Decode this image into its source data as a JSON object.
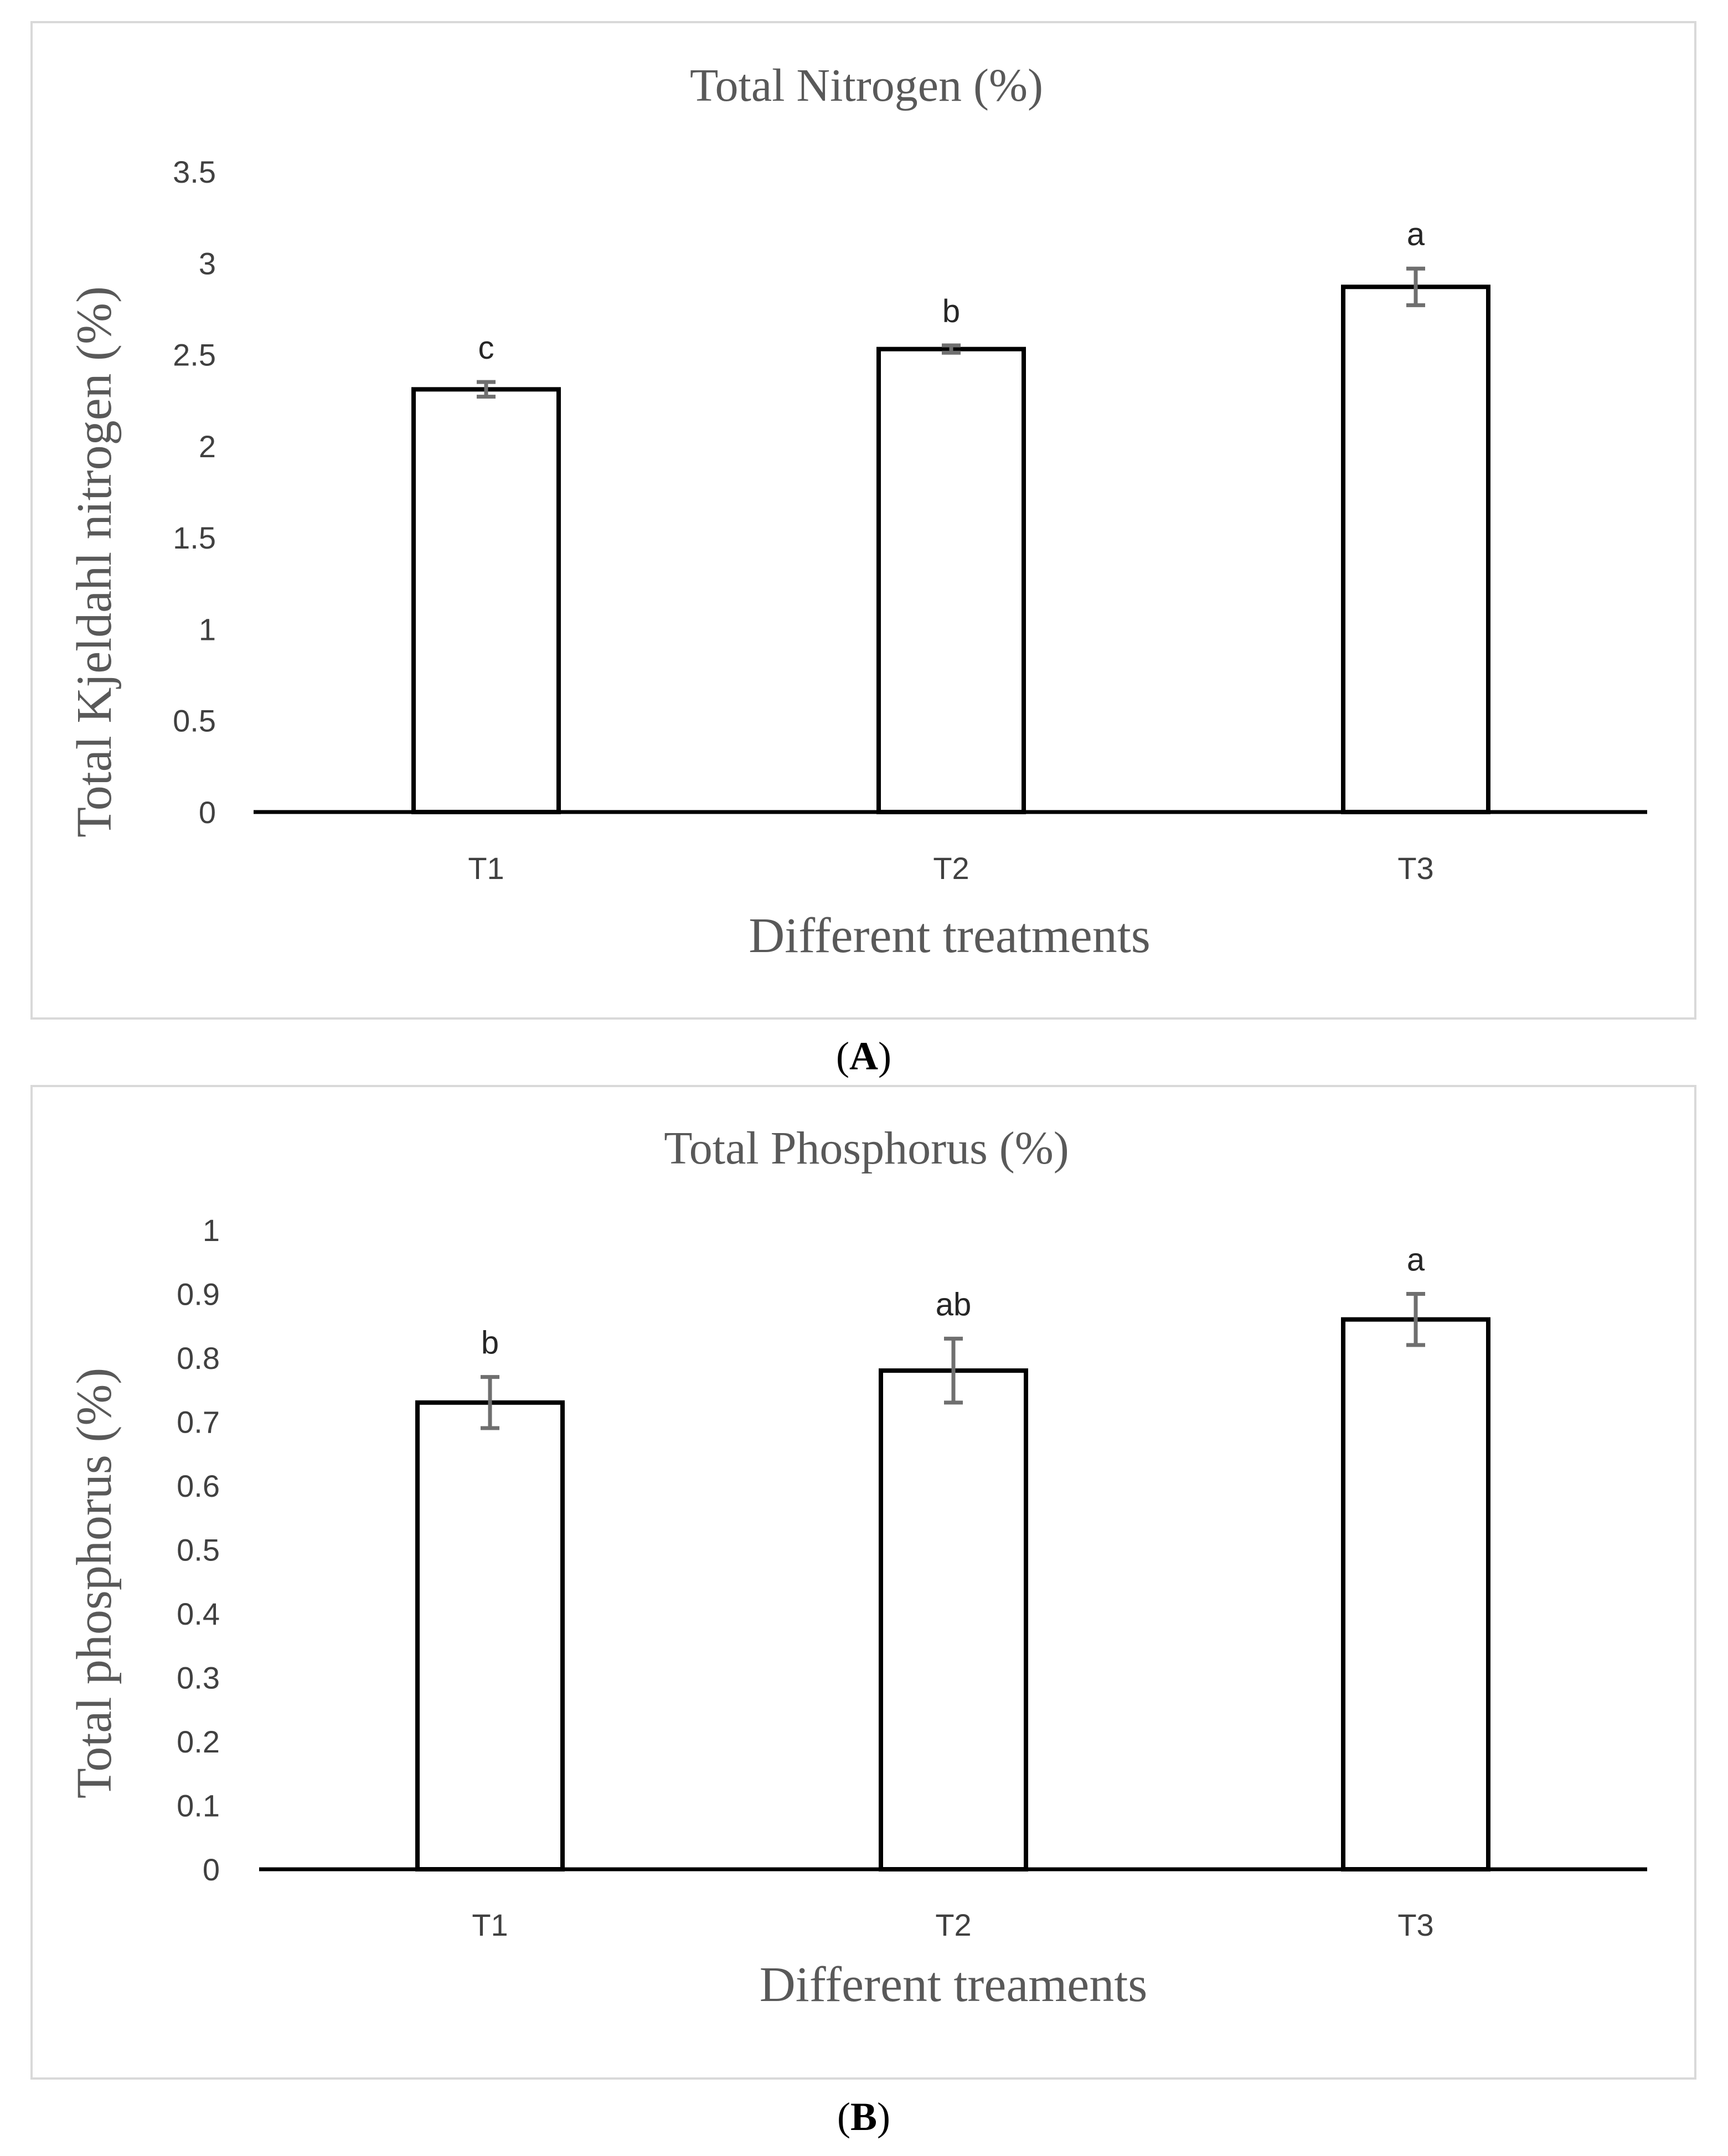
{
  "chart_data": [
    {
      "panel_label": "A",
      "type": "bar",
      "title": "Total Nitrogen (%)",
      "xlabel": "Different treatments",
      "ylabel": "Total Kjeldahl nitrogen (%)",
      "categories": [
        "T1",
        "T2",
        "T3"
      ],
      "values": [
        2.31,
        2.53,
        2.87
      ],
      "errors": [
        0.04,
        0.02,
        0.1
      ],
      "significance": [
        "c",
        "b",
        "a"
      ],
      "ylim": [
        0,
        3.5
      ],
      "yticks": [
        "0",
        "0.5",
        "1",
        "1.5",
        "2",
        "2.5",
        "3",
        "3.5"
      ],
      "grid": false,
      "legend": "none"
    },
    {
      "panel_label": "B",
      "type": "bar",
      "title": "Total Phosphorus (%)",
      "xlabel": "Different treaments",
      "ylabel": "Total phosphorus (%)",
      "categories": [
        "T1",
        "T2",
        "T3"
      ],
      "values": [
        0.73,
        0.78,
        0.86
      ],
      "errors": [
        0.04,
        0.05,
        0.04
      ],
      "significance": [
        "b",
        "ab",
        "a"
      ],
      "ylim": [
        0,
        1
      ],
      "yticks": [
        "0",
        "0.1",
        "0.2",
        "0.3",
        "0.4",
        "0.5",
        "0.6",
        "0.7",
        "0.8",
        "0.9",
        "1"
      ],
      "grid": false,
      "legend": "none"
    }
  ]
}
